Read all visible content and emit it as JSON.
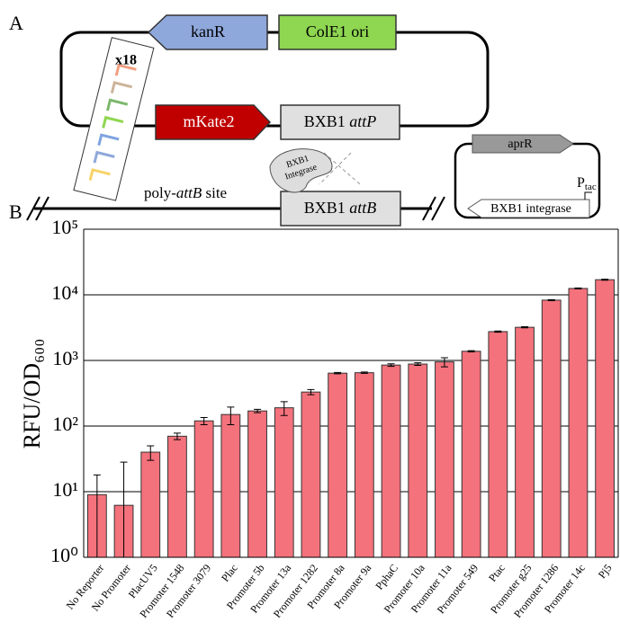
{
  "panel_labels": [
    "A",
    "B"
  ],
  "diagram": {
    "kanR": "kanR",
    "ori": "ColE1 ori",
    "copies": "x18",
    "reporter": "mKate2",
    "attP": {
      "text": "BXB1",
      "italic": "attP"
    },
    "integrase_blob": [
      "BXB1",
      "Integrase"
    ],
    "poly_site": {
      "text": "poly-",
      "italic": "attB",
      "suffix": "site"
    },
    "attB": {
      "text": "BXB1",
      "italic": "attB"
    },
    "aprR": "aprR",
    "promoter": {
      "text": "P",
      "sub": "tac"
    },
    "integrase": "BXB1 integrase"
  },
  "chart_data": {
    "type": "bar",
    "y_label": "RFU/OD₆₀₀",
    "log_scale": true,
    "grid": true,
    "color": "#f4727c",
    "categories": [
      "No Reporter",
      "No Promoter",
      "PlacUV5",
      "Promoter 1548",
      "Promoter 3079",
      "Plac",
      "Promoter 5b",
      "Promoter 13a",
      "Promoter 1282",
      "Promoter 8a",
      "Promoter 9a",
      "PphaC",
      "Promoter 10a",
      "Promoter 11a",
      "Promoter 549",
      "Ptac",
      "Promoter g25",
      "Promoter 1286",
      "Promoter 14c",
      "Pj5"
    ],
    "values": [
      9,
      6.2,
      40,
      70,
      120,
      150,
      170,
      190,
      330,
      640,
      650,
      850,
      880,
      950,
      1380,
      2750,
      3200,
      8300,
      12500,
      17000
    ],
    "errors": [
      9,
      22,
      10,
      8,
      15,
      45,
      10,
      45,
      30,
      15,
      15,
      40,
      40,
      150,
      30,
      60,
      60,
      150,
      200,
      300
    ],
    "ylim": [
      1,
      100000
    ],
    "yticks": [
      {
        "value": 1,
        "label": "10⁰"
      },
      {
        "value": 10,
        "label": "10¹"
      },
      {
        "value": 100,
        "label": "10²"
      },
      {
        "value": 1000,
        "label": "10³"
      },
      {
        "value": 10000,
        "label": "10⁴"
      },
      {
        "value": 100000,
        "label": "10⁵"
      }
    ]
  }
}
